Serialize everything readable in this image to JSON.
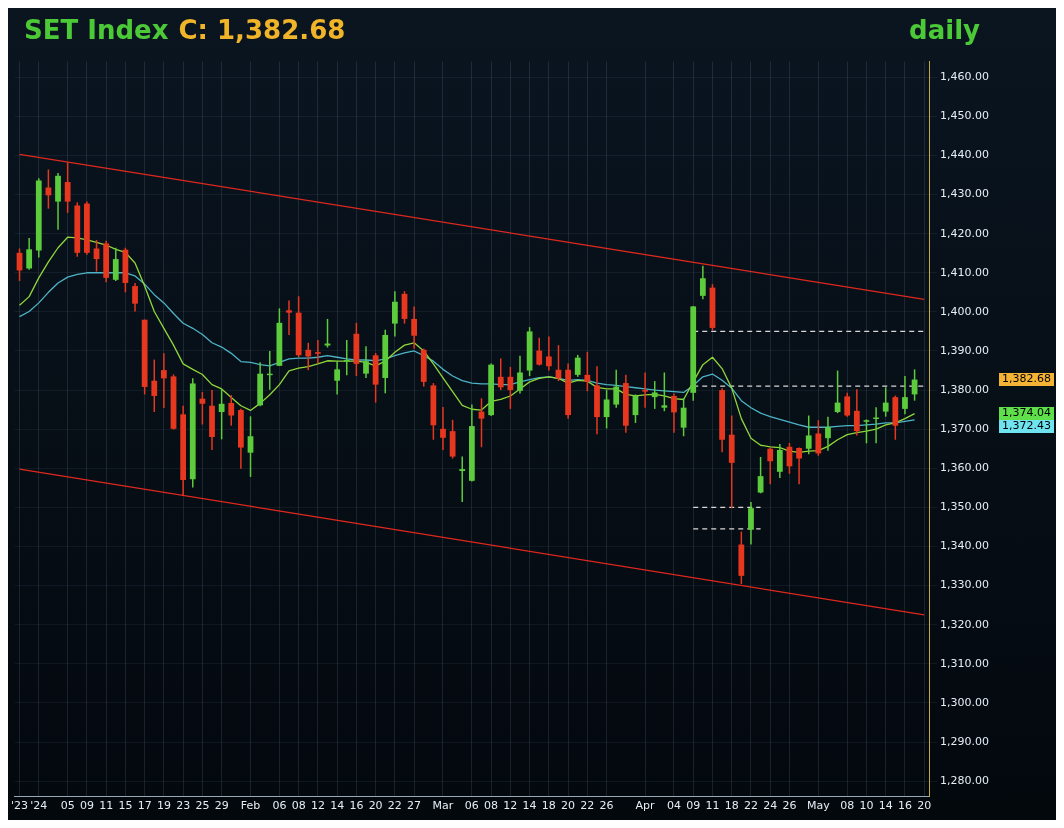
{
  "chart_data": {
    "type": "candlestick",
    "title": "SET Index",
    "subtitle": "daily",
    "annotations": [
      "C: 1,382.68",
      "1,382.68",
      "1,374.04",
      "1,372.43"
    ],
    "categories": [
      "'23",
      null,
      "'24",
      null,
      null,
      "05",
      null,
      "09",
      null,
      "11",
      null,
      "15",
      null,
      "17",
      null,
      "19",
      null,
      "23",
      null,
      "25",
      null,
      "29",
      null,
      null,
      "Feb",
      null,
      null,
      "06",
      null,
      "08",
      null,
      "12",
      null,
      "14",
      null,
      "16",
      null,
      "20",
      null,
      "22",
      null,
      "27",
      null,
      null,
      "Mar",
      null,
      null,
      "06",
      null,
      "08",
      null,
      "12",
      null,
      "14",
      null,
      "18",
      null,
      "20",
      null,
      "22",
      null,
      "26",
      null,
      null,
      null,
      "Apr",
      null,
      null,
      "04",
      null,
      "09",
      null,
      "11",
      null,
      "18",
      null,
      "22",
      null,
      "24",
      null,
      "26",
      null,
      null,
      "May",
      null,
      null,
      "08",
      null,
      "10",
      null,
      "14",
      null,
      "16",
      null,
      "20"
    ],
    "ohlc": [
      [
        1415.1,
        1416.2,
        1407.9,
        1410.6
      ],
      [
        1411.1,
        1418.9,
        1410.8,
        1416.0
      ],
      [
        1415.7,
        1434.2,
        1413.9,
        1433.6
      ],
      [
        1431.8,
        1436.4,
        1426.4,
        1429.8
      ],
      [
        1428.2,
        1435.5,
        1421.0,
        1434.8
      ],
      [
        1433.2,
        1438.2,
        1425.3,
        1428.2
      ],
      [
        1427.2,
        1428.0,
        1414.1,
        1415.1
      ],
      [
        1427.7,
        1428.2,
        1414.6,
        1415.1
      ],
      [
        1416.2,
        1418.4,
        1410.3,
        1413.5
      ],
      [
        1417.5,
        1418.2,
        1407.6,
        1408.7
      ],
      [
        1408.2,
        1416.4,
        1407.9,
        1413.5
      ],
      [
        1415.9,
        1416.4,
        1405.0,
        1407.4
      ],
      [
        1406.6,
        1407.4,
        1400.1,
        1402.1
      ],
      [
        1398.0,
        1398.0,
        1378.9,
        1380.8
      ],
      [
        1382.4,
        1387.8,
        1374.4,
        1378.5
      ],
      [
        1385.1,
        1389.4,
        1375.4,
        1383.0
      ],
      [
        1383.5,
        1384.0,
        1369.9,
        1370.1
      ],
      [
        1373.8,
        1376.0,
        1352.9,
        1357.0
      ],
      [
        1357.2,
        1383.0,
        1355.1,
        1381.7
      ],
      [
        1377.8,
        1379.5,
        1371.2,
        1376.5
      ],
      [
        1376.0,
        1380.0,
        1364.7,
        1368.0
      ],
      [
        1374.4,
        1380.3,
        1367.4,
        1376.5
      ],
      [
        1376.7,
        1378.7,
        1370.9,
        1373.5
      ],
      [
        1374.9,
        1375.2,
        1359.9,
        1365.3
      ],
      [
        1364.0,
        1373.3,
        1357.8,
        1368.2
      ],
      [
        1376.1,
        1387.1,
        1375.9,
        1384.2
      ],
      [
        1384.0,
        1390.0,
        1380.1,
        1384.2
      ],
      [
        1386.2,
        1400.9,
        1386.2,
        1397.2
      ],
      [
        1400.4,
        1402.9,
        1394.1,
        1399.8
      ],
      [
        1399.8,
        1404.0,
        1388.4,
        1388.9
      ],
      [
        1390.3,
        1392.1,
        1385.1,
        1388.6
      ],
      [
        1389.7,
        1392.8,
        1386.8,
        1389.3
      ],
      [
        1391.4,
        1398.2,
        1390.9,
        1391.9
      ],
      [
        1382.4,
        1387.4,
        1378.9,
        1385.3
      ],
      [
        1387.4,
        1392.8,
        1383.8,
        1387.7
      ],
      [
        1394.4,
        1397.2,
        1383.6,
        1386.7
      ],
      [
        1384.2,
        1391.2,
        1383.1,
        1387.4
      ],
      [
        1388.9,
        1389.5,
        1376.8,
        1381.4
      ],
      [
        1383.1,
        1395.4,
        1379.2,
        1394.1
      ],
      [
        1397.0,
        1405.3,
        1393.7,
        1402.6
      ],
      [
        1404.6,
        1405.3,
        1397.0,
        1398.2
      ],
      [
        1398.2,
        1401.4,
        1390.6,
        1393.9
      ],
      [
        1390.3,
        1390.6,
        1380.9,
        1382.1
      ],
      [
        1381.2,
        1381.8,
        1367.3,
        1371.0
      ],
      [
        1370.1,
        1375.7,
        1364.7,
        1367.8
      ],
      [
        1369.5,
        1372.4,
        1362.5,
        1363.0
      ],
      [
        1359.3,
        1363.0,
        1351.4,
        1359.8
      ],
      [
        1356.8,
        1376.3,
        1356.6,
        1370.8
      ],
      [
        1374.5,
        1377.9,
        1365.4,
        1372.7
      ],
      [
        1373.6,
        1386.8,
        1373.4,
        1386.5
      ],
      [
        1383.4,
        1388.1,
        1380.0,
        1380.7
      ],
      [
        1383.4,
        1385.9,
        1375.2,
        1380.0
      ],
      [
        1379.8,
        1388.8,
        1379.1,
        1384.5
      ],
      [
        1385.0,
        1396.1,
        1383.6,
        1395.0
      ],
      [
        1390.1,
        1393.4,
        1386.3,
        1386.5
      ],
      [
        1388.6,
        1393.7,
        1385.0,
        1386.1
      ],
      [
        1385.2,
        1391.5,
        1382.3,
        1383.0
      ],
      [
        1385.2,
        1386.8,
        1372.7,
        1373.6
      ],
      [
        1383.9,
        1389.0,
        1383.4,
        1388.3
      ],
      [
        1383.9,
        1389.8,
        1379.7,
        1382.1
      ],
      [
        1381.2,
        1386.1,
        1368.7,
        1373.1
      ],
      [
        1373.1,
        1380.0,
        1370.2,
        1377.6
      ],
      [
        1376.3,
        1385.2,
        1375.5,
        1380.9
      ],
      [
        1381.8,
        1383.9,
        1369.1,
        1370.9
      ],
      [
        1373.6,
        1378.9,
        1371.6,
        1378.5
      ],
      [
        1380.0,
        1384.5,
        1375.5,
        1379.7
      ],
      [
        1378.2,
        1382.3,
        1375.2,
        1379.4
      ],
      [
        1375.5,
        1384.5,
        1374.6,
        1376.1
      ],
      [
        1378.5,
        1379.1,
        1369.1,
        1374.3
      ],
      [
        1370.4,
        1377.9,
        1368.2,
        1375.5
      ],
      [
        1379.3,
        1401.5,
        1377.3,
        1401.4
      ],
      [
        1404.1,
        1411.8,
        1403.2,
        1408.6
      ],
      [
        1406.2,
        1407.1,
        1395.3,
        1395.9
      ],
      [
        1380.0,
        1380.5,
        1364.1,
        1367.3
      ],
      [
        1368.6,
        1373.5,
        1349.8,
        1361.4
      ],
      [
        1340.5,
        1343.8,
        1330.4,
        1332.5
      ],
      [
        1344.3,
        1351.4,
        1340.5,
        1349.8
      ],
      [
        1353.8,
        1362.9,
        1353.6,
        1358.0
      ],
      [
        1365.0,
        1365.3,
        1355.9,
        1361.8
      ],
      [
        1359.1,
        1366.2,
        1357.5,
        1364.7
      ],
      [
        1365.5,
        1366.5,
        1358.6,
        1360.5
      ],
      [
        1365.2,
        1365.3,
        1355.9,
        1362.5
      ],
      [
        1365.0,
        1373.5,
        1363.6,
        1368.4
      ],
      [
        1368.9,
        1372.3,
        1363.2,
        1363.8
      ],
      [
        1367.7,
        1373.2,
        1364.5,
        1370.5
      ],
      [
        1374.4,
        1385.0,
        1374.1,
        1376.8
      ],
      [
        1378.4,
        1379.3,
        1373.2,
        1373.5
      ],
      [
        1374.7,
        1380.2,
        1368.4,
        1369.5
      ],
      [
        1371.9,
        1372.5,
        1366.4,
        1372.3
      ],
      [
        1372.6,
        1375.6,
        1366.4,
        1373.0
      ],
      [
        1374.5,
        1380.7,
        1373.2,
        1376.8
      ],
      [
        1378.2,
        1378.6,
        1367.3,
        1370.9
      ],
      [
        1375.2,
        1383.6,
        1373.8,
        1378.2
      ],
      [
        1378.9,
        1385.3,
        1377.3,
        1382.7
      ],
      null
    ],
    "colors": [
      "#e8371f",
      "#5ccb3c",
      "#5ccb3c",
      "#e8371f",
      "#5ccb3c",
      "#e8371f",
      "#e8371f",
      "#e8371f",
      "#e8371f",
      "#e8371f",
      "#5ccb3c",
      "#e8371f",
      "#e8371f",
      "#e8371f",
      "#e8371f",
      "#e8371f",
      "#e8371f",
      "#e8371f",
      "#5ccb3c",
      "#e8371f",
      "#e8371f",
      "#5ccb3c",
      "#e8371f",
      "#e8371f",
      "#5ccb3c",
      "#5ccb3c",
      "#5ccb3c",
      "#5ccb3c",
      "#e8371f",
      "#e8371f",
      "#e8371f",
      "#e8371f",
      "#5ccb3c",
      "#5ccb3c",
      "#5ccb3c",
      "#e8371f",
      "#5ccb3c",
      "#e8371f",
      "#5ccb3c",
      "#5ccb3c",
      "#e8371f",
      "#e8371f",
      "#e8371f",
      "#e8371f",
      "#e8371f",
      "#e8371f",
      "#5ccb3c",
      "#5ccb3c",
      "#e8371f",
      "#5ccb3c",
      "#e8371f",
      "#e8371f",
      "#5ccb3c",
      "#5ccb3c",
      "#e8371f",
      "#e8371f",
      "#e8371f",
      "#e8371f",
      "#5ccb3c",
      "#e8371f",
      "#e8371f",
      "#5ccb3c",
      "#5ccb3c",
      "#e8371f",
      "#5ccb3c",
      "#e8371f",
      "#5ccb3c",
      "#5ccb3c",
      "#e8371f",
      "#5ccb3c",
      "#5ccb3c",
      "#5ccb3c",
      "#e8371f",
      "#e8371f",
      "#e8371f",
      "#e8371f",
      "#5ccb3c",
      "#5ccb3c",
      "#e8371f",
      "#5ccb3c",
      "#e8371f",
      "#e8371f",
      "#5ccb3c",
      "#e8371f",
      "#5ccb3c",
      "#5ccb3c",
      "#e8371f",
      "#e8371f",
      "#5ccb3c",
      "#5ccb3c",
      "#5ccb3c",
      "#e8371f",
      "#5ccb3c",
      "#5ccb3c",
      null
    ],
    "series": [
      {
        "type": "line",
        "color": "#8fd63a",
        "line_style": "solid",
        "values": [
          1401.7,
          1403.9,
          1408.7,
          1412.8,
          1416.4,
          1419.1,
          1418.9,
          1418.4,
          1417.8,
          1417.1,
          1416.0,
          1415.2,
          1412.5,
          1406.6,
          1400.1,
          1395.8,
          1391.5,
          1386.7,
          1385.3,
          1384.0,
          1381.4,
          1380.3,
          1378.1,
          1376.0,
          1374.8,
          1376.6,
          1378.8,
          1381.4,
          1384.9,
          1385.6,
          1386.0,
          1386.7,
          1387.5,
          1387.4,
          1387.4,
          1387.4,
          1387.1,
          1386.2,
          1387.4,
          1389.7,
          1391.5,
          1392.1,
          1390.0,
          1386.7,
          1383.1,
          1379.6,
          1376.1,
          1375.1,
          1374.9,
          1377.1,
          1377.6,
          1378.5,
          1380.3,
          1382.1,
          1383.0,
          1383.4,
          1383.0,
          1381.8,
          1382.5,
          1382.3,
          1380.7,
          1380.3,
          1380.3,
          1378.9,
          1378.5,
          1378.8,
          1378.9,
          1378.5,
          1377.8,
          1377.6,
          1382.1,
          1386.5,
          1388.4,
          1385.5,
          1380.5,
          1372.7,
          1367.7,
          1365.9,
          1365.5,
          1365.3,
          1364.4,
          1364.1,
          1364.4,
          1364.5,
          1365.6,
          1367.3,
          1368.6,
          1369.1,
          1369.5,
          1370.0,
          1371.1,
          1371.6,
          1372.7,
          1374.0,
          null
        ]
      },
      {
        "type": "line",
        "color": "#4cb4c6",
        "line_style": "solid",
        "values": [
          1398.8,
          1400.1,
          1402.3,
          1405.0,
          1407.4,
          1408.9,
          1409.6,
          1410.0,
          1410.0,
          1410.0,
          1410.0,
          1410.0,
          1409.2,
          1407.1,
          1404.4,
          1402.3,
          1399.6,
          1397.1,
          1395.8,
          1394.2,
          1392.1,
          1391.0,
          1389.4,
          1387.3,
          1387.1,
          1386.5,
          1386.2,
          1387.1,
          1388.0,
          1388.2,
          1388.2,
          1388.4,
          1388.8,
          1388.4,
          1388.0,
          1387.7,
          1387.7,
          1387.5,
          1388.0,
          1388.8,
          1389.5,
          1390.0,
          1388.8,
          1387.4,
          1385.3,
          1383.6,
          1382.4,
          1381.8,
          1381.6,
          1381.6,
          1381.4,
          1381.4,
          1382.1,
          1382.7,
          1383.2,
          1383.4,
          1383.0,
          1382.5,
          1382.7,
          1382.5,
          1381.8,
          1381.4,
          1381.2,
          1380.9,
          1380.6,
          1380.3,
          1380.0,
          1379.8,
          1379.6,
          1379.4,
          1381.2,
          1383.4,
          1384.1,
          1382.5,
          1380.5,
          1377.3,
          1375.5,
          1374.1,
          1373.2,
          1372.5,
          1371.8,
          1371.1,
          1370.5,
          1370.5,
          1370.5,
          1370.7,
          1370.9,
          1370.9,
          1371.1,
          1371.3,
          1371.6,
          1371.6,
          1372.0,
          1372.4,
          null
        ]
      },
      {
        "type": "line",
        "color": "#d8d8d8",
        "line_style": "dashed",
        "values": [
          null,
          null,
          null,
          null,
          null,
          null,
          null,
          null,
          null,
          null,
          null,
          null,
          null,
          null,
          null,
          null,
          null,
          null,
          null,
          null,
          null,
          null,
          null,
          null,
          null,
          null,
          null,
          null,
          null,
          null,
          null,
          null,
          null,
          null,
          null,
          null,
          null,
          null,
          null,
          null,
          null,
          null,
          null,
          null,
          null,
          null,
          null,
          null,
          null,
          null,
          null,
          null,
          null,
          null,
          null,
          null,
          null,
          null,
          null,
          null,
          null,
          null,
          null,
          null,
          null,
          null,
          null,
          null,
          null,
          null,
          1395,
          1395,
          1395,
          1395,
          1395,
          1395,
          1395,
          1395,
          1395,
          1395,
          1395,
          1395,
          1395,
          1395,
          1395,
          1395,
          1395,
          1395,
          1395,
          1395,
          1395,
          1395,
          1395,
          1395,
          1395
        ]
      },
      {
        "type": "line",
        "color": "#d8d8d8",
        "line_style": "dashed",
        "values": [
          null,
          null,
          null,
          null,
          null,
          null,
          null,
          null,
          null,
          null,
          null,
          null,
          null,
          null,
          null,
          null,
          null,
          null,
          null,
          null,
          null,
          null,
          null,
          null,
          null,
          null,
          null,
          null,
          null,
          null,
          null,
          null,
          null,
          null,
          null,
          null,
          null,
          null,
          null,
          null,
          null,
          null,
          null,
          null,
          null,
          null,
          null,
          null,
          null,
          null,
          null,
          null,
          null,
          null,
          null,
          null,
          null,
          null,
          null,
          null,
          null,
          null,
          null,
          null,
          null,
          null,
          null,
          null,
          null,
          null,
          1381,
          1381,
          1381,
          1381,
          1381,
          1381,
          1381,
          1381,
          1381,
          1381,
          1381,
          1381,
          1381,
          1381,
          1381,
          1381,
          1381,
          1381,
          1381,
          1381,
          1381,
          1381,
          1381,
          1381,
          1381
        ]
      },
      {
        "type": "line",
        "color": "#d8d8d8",
        "line_style": "dashed",
        "values": [
          null,
          null,
          null,
          null,
          null,
          null,
          null,
          null,
          null,
          null,
          null,
          null,
          null,
          null,
          null,
          null,
          null,
          null,
          null,
          null,
          null,
          null,
          null,
          null,
          null,
          null,
          null,
          null,
          null,
          null,
          null,
          null,
          null,
          null,
          null,
          null,
          null,
          null,
          null,
          null,
          null,
          null,
          null,
          null,
          null,
          null,
          null,
          null,
          null,
          null,
          null,
          null,
          null,
          null,
          null,
          null,
          null,
          null,
          null,
          null,
          null,
          null,
          null,
          null,
          null,
          null,
          null,
          null,
          null,
          null,
          1350,
          1350,
          1350,
          1350,
          1350,
          1350,
          1350,
          1350,
          null,
          null,
          null,
          null,
          null,
          null,
          null,
          null,
          null,
          null,
          null,
          null,
          null,
          null,
          null,
          null,
          null
        ]
      },
      {
        "type": "line",
        "color": "#d8d8d8",
        "line_style": "dashed",
        "values": [
          null,
          null,
          null,
          null,
          null,
          null,
          null,
          null,
          null,
          null,
          null,
          null,
          null,
          null,
          null,
          null,
          null,
          null,
          null,
          null,
          null,
          null,
          null,
          null,
          null,
          null,
          null,
          null,
          null,
          null,
          null,
          null,
          null,
          null,
          null,
          null,
          null,
          null,
          null,
          null,
          null,
          null,
          null,
          null,
          null,
          null,
          null,
          null,
          null,
          null,
          null,
          null,
          null,
          null,
          null,
          null,
          null,
          null,
          null,
          null,
          null,
          null,
          null,
          null,
          null,
          null,
          null,
          null,
          null,
          null,
          1344.5,
          1344.5,
          1344.5,
          1344.5,
          1344.5,
          1344.5,
          1344.5,
          1344.5,
          null,
          null,
          null,
          null,
          null,
          null,
          null,
          null,
          null,
          null,
          null,
          null,
          null,
          null,
          null,
          null,
          null
        ]
      },
      {
        "type": "line",
        "color": "#e0281e",
        "line_style": "solid",
        "values": [
          1440.3,
          null,
          null,
          null,
          null,
          null,
          null,
          null,
          null,
          null,
          null,
          null,
          null,
          null,
          null,
          null,
          null,
          null,
          null,
          null,
          null,
          null,
          null,
          null,
          null,
          null,
          null,
          null,
          null,
          null,
          null,
          null,
          null,
          null,
          null,
          null,
          null,
          null,
          null,
          null,
          null,
          null,
          null,
          null,
          null,
          null,
          null,
          null,
          null,
          null,
          null,
          null,
          null,
          null,
          null,
          null,
          null,
          null,
          null,
          null,
          null,
          null,
          null,
          null,
          null,
          null,
          null,
          null,
          null,
          null,
          null,
          null,
          null,
          null,
          null,
          null,
          null,
          null,
          null,
          null,
          null,
          null,
          null,
          null,
          null,
          null,
          null,
          null,
          null,
          null,
          null,
          null,
          null,
          null,
          1403.2
        ]
      },
      {
        "type": "line",
        "color": "#e0281e",
        "line_style": "solid",
        "values": [
          1359.8,
          null,
          null,
          null,
          null,
          null,
          null,
          null,
          null,
          null,
          null,
          null,
          null,
          null,
          null,
          null,
          null,
          null,
          null,
          null,
          null,
          null,
          null,
          null,
          null,
          null,
          null,
          null,
          null,
          null,
          null,
          null,
          null,
          null,
          null,
          null,
          null,
          null,
          null,
          null,
          null,
          null,
          null,
          null,
          null,
          null,
          null,
          null,
          null,
          null,
          null,
          null,
          null,
          null,
          null,
          null,
          null,
          null,
          null,
          null,
          null,
          null,
          null,
          null,
          null,
          null,
          null,
          null,
          null,
          null,
          null,
          null,
          null,
          null,
          null,
          null,
          null,
          null,
          null,
          null,
          null,
          null,
          null,
          null,
          null,
          null,
          null,
          null,
          null,
          null,
          null,
          null,
          null,
          null,
          1322.5
        ]
      }
    ],
    "marker": "none",
    "ylim": [
      1276,
      1464
    ],
    "yticks": [
      {
        "value": 1280,
        "label": "1,280.00"
      },
      {
        "value": 1290,
        "label": "1,290.00"
      },
      {
        "value": 1300,
        "label": "1,300.00"
      },
      {
        "value": 1310,
        "label": "1,310.00"
      },
      {
        "value": 1320,
        "label": "1,320.00"
      },
      {
        "value": 1330,
        "label": "1,330.00"
      },
      {
        "value": 1340,
        "label": "1,340.00"
      },
      {
        "value": 1350,
        "label": "1,350.00"
      },
      {
        "value": 1360,
        "label": "1,360.00"
      },
      {
        "value": 1370,
        "label": "1,370.00"
      },
      {
        "value": 1380,
        "label": "1,380.00"
      },
      {
        "value": 1390,
        "label": "1,390.00"
      },
      {
        "value": 1400,
        "label": "1,400.00"
      },
      {
        "value": 1410,
        "label": "1,410.00"
      },
      {
        "value": 1420,
        "label": "1,420.00"
      },
      {
        "value": 1430,
        "label": "1,430.00"
      },
      {
        "value": 1440,
        "label": "1,440.00"
      },
      {
        "value": 1450,
        "label": "1,450.00"
      },
      {
        "value": 1460,
        "label": "1,460.00"
      }
    ],
    "grid": true
  }
}
